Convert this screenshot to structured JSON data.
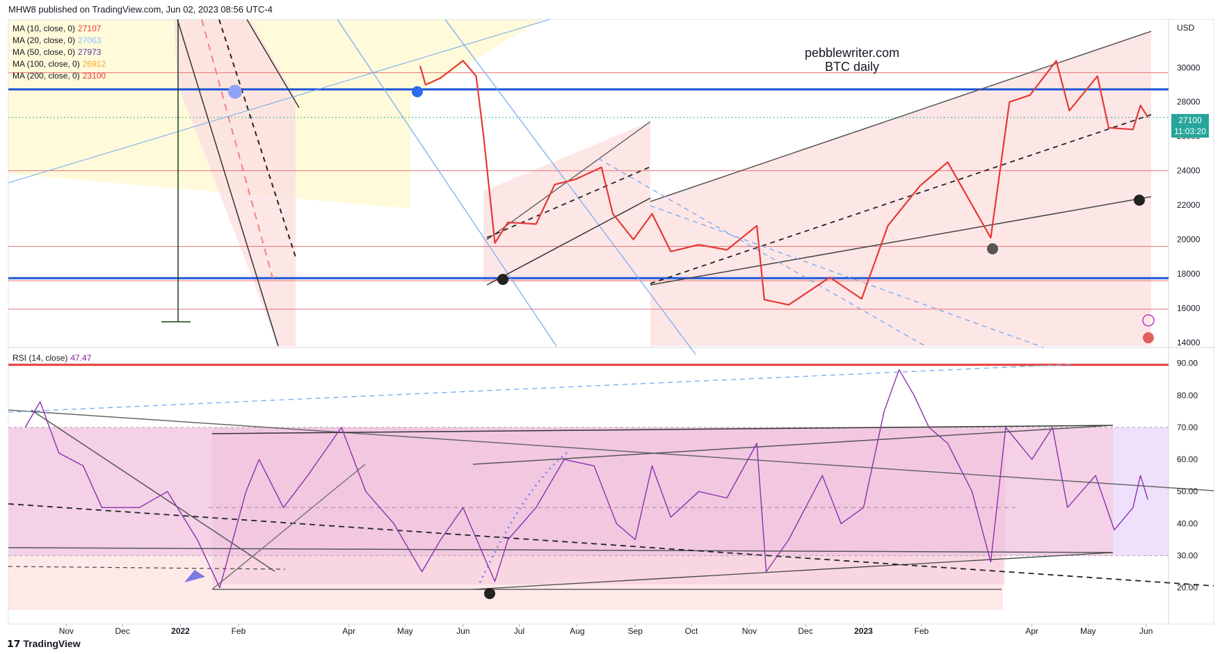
{
  "header": {
    "published": "MHW8 published on TradingView.com, Jun 02, 2023 08:56 UTC-4"
  },
  "watermark": {
    "line1": "pebblewriter.com",
    "line2": "BTC daily"
  },
  "footer": {
    "brand": "TradingView"
  },
  "price_tag": {
    "price": "27100",
    "countdown": "11:03:20",
    "color": "#26a69a"
  },
  "indicators": [
    {
      "label": "MA (10, close, 0)",
      "value": "27107",
      "color": "#e53935"
    },
    {
      "label": "MA (20, close, 0)",
      "value": "27063",
      "color": "#90bff9"
    },
    {
      "label": "MA (50, close, 0)",
      "value": "27973",
      "color": "#5b3c9e"
    },
    {
      "label": "MA (100, close, 0)",
      "value": "26912",
      "color": "#f9a825"
    },
    {
      "label": "MA (200, close, 0)",
      "value": "23100",
      "color": "#e53935"
    }
  ],
  "rsi_legend": {
    "label": "RSI (14, close)",
    "value": "47.47",
    "color": "#7b1fa2"
  },
  "chart_data": [
    {
      "type": "line",
      "title": "",
      "y_unit": "USD",
      "yticks": [
        "30000",
        "28000",
        "26000",
        "24000",
        "22000",
        "20000",
        "18000",
        "16000",
        "14000"
      ],
      "ylim": [
        13800,
        32800
      ],
      "x_ticks": [
        "Nov",
        "Dec",
        "2022",
        "Feb",
        "Apr",
        "May",
        "Jun",
        "Jul",
        "Aug",
        "Sep",
        "Oct",
        "Nov",
        "Dec",
        "2023",
        "Feb",
        "Apr",
        "May",
        "Jun"
      ],
      "horizontal_levels": [
        {
          "value": 29700,
          "color": "#e57373"
        },
        {
          "value": 28730,
          "color": "#1e56d8"
        },
        {
          "value": 27100,
          "color": "#26a69a"
        },
        {
          "value": 24000,
          "color": "#e57373"
        },
        {
          "value": 19600,
          "color": "#e57373"
        },
        {
          "value": 17750,
          "color": "#1e56d8"
        },
        {
          "value": 17600,
          "color": "#e57373"
        },
        {
          "value": 15950,
          "color": "#e57373"
        }
      ],
      "series": [
        {
          "points": [
            [
              "May 09, 2022",
              30100
            ],
            [
              "May 12, 2022",
              29000
            ],
            [
              "May 20, 2022",
              29400
            ],
            [
              "Jun 01, 2022",
              30400
            ],
            [
              "Jun 08, 2022",
              29500
            ],
            [
              "Jun 12, 2022",
              26000
            ],
            [
              "Jun 18, 2022",
              19800
            ],
            [
              "Jun 25, 2022",
              21000
            ],
            [
              "Jul 10, 2022",
              20900
            ],
            [
              "Jul 20, 2022",
              23200
            ],
            [
              "Jul 31, 2022",
              23500
            ],
            [
              "Aug 14, 2022",
              24200
            ],
            [
              "Aug 20, 2022",
              21500
            ],
            [
              "Aug 31, 2022",
              20000
            ],
            [
              "Sep 10, 2022",
              21500
            ],
            [
              "Sep 20, 2022",
              19300
            ],
            [
              "Oct 05, 2022",
              19700
            ],
            [
              "Oct 20, 2022",
              19400
            ],
            [
              "Nov 05, 2022",
              20800
            ],
            [
              "Nov 09, 2022",
              16500
            ],
            [
              "Nov 22, 2022",
              16200
            ],
            [
              "Dec 14, 2022",
              17800
            ],
            [
              "Dec 31, 2022",
              16550
            ],
            [
              "Jan 14, 2023",
              20800
            ],
            [
              "Jan 31, 2023",
              23100
            ],
            [
              "Feb 15, 2023",
              24500
            ],
            [
              "Mar 10, 2023",
              20100
            ],
            [
              "Mar 20, 2023",
              28000
            ],
            [
              "Mar 31, 2023",
              28400
            ],
            [
              "Apr 14, 2023",
              30400
            ],
            [
              "Apr 21, 2023",
              27500
            ],
            [
              "May 06, 2023",
              29500
            ],
            [
              "May 12, 2023",
              26500
            ],
            [
              "May 25, 2023",
              26400
            ],
            [
              "May 29, 2023",
              27800
            ],
            [
              "Jun 02, 2023",
              27100
            ]
          ]
        }
      ]
    },
    {
      "type": "line",
      "title": "",
      "yticks": [
        "90.00",
        "80.00",
        "70.00",
        "60.00",
        "50.00",
        "40.00",
        "30.00",
        "20.00"
      ],
      "ylim": [
        13,
        91
      ],
      "horizontal_levels": [
        {
          "value": 89.5,
          "color": "#e53935"
        },
        {
          "value": 70,
          "color": "#b0a0b0"
        },
        {
          "value": 30,
          "color": "#b0a0b0"
        }
      ],
      "series": [
        {
          "points": [
            [
              "Oct 10, 2021",
              70
            ],
            [
              "Oct 18, 2021",
              78
            ],
            [
              "Oct 28, 2021",
              62
            ],
            [
              "Nov 10, 2021",
              58
            ],
            [
              "Nov 20, 2021",
              45
            ],
            [
              "Dec 10, 2021",
              45
            ],
            [
              "Dec 25, 2021",
              50
            ],
            [
              "Jan 10, 2022",
              35
            ],
            [
              "Jan 22, 2022",
              20
            ],
            [
              "Feb 05, 2022",
              50
            ],
            [
              "Feb 12, 2022",
              60
            ],
            [
              "Feb 25, 2022",
              45
            ],
            [
              "Mar 10, 2022",
              55
            ],
            [
              "Mar 28, 2022",
              70
            ],
            [
              "Apr 10, 2022",
              50
            ],
            [
              "Apr 25, 2022",
              40
            ],
            [
              "May 10, 2022",
              25
            ],
            [
              "May 20, 2022",
              35
            ],
            [
              "Jun 01, 2022",
              45
            ],
            [
              "Jun 12, 2022",
              30
            ],
            [
              "Jun 18, 2022",
              22
            ],
            [
              "Jun 25, 2022",
              35
            ],
            [
              "Jul 10, 2022",
              45
            ],
            [
              "Jul 25, 2022",
              60
            ],
            [
              "Aug 10, 2022",
              58
            ],
            [
              "Aug 22, 2022",
              40
            ],
            [
              "Sep 01, 2022",
              35
            ],
            [
              "Sep 10, 2022",
              58
            ],
            [
              "Sep 20, 2022",
              42
            ],
            [
              "Oct 05, 2022",
              50
            ],
            [
              "Oct 20, 2022",
              48
            ],
            [
              "Nov 05, 2022",
              65
            ],
            [
              "Nov 10, 2022",
              25
            ],
            [
              "Nov 22, 2022",
              35
            ],
            [
              "Dec 10, 2022",
              55
            ],
            [
              "Dec 20, 2022",
              40
            ],
            [
              "Jan 01, 2023",
              45
            ],
            [
              "Jan 12, 2023",
              75
            ],
            [
              "Jan 20, 2023",
              88
            ],
            [
              "Jan 28, 2023",
              80
            ],
            [
              "Feb 05, 2023",
              70
            ],
            [
              "Feb 15, 2023",
              65
            ],
            [
              "Feb 28, 2023",
              50
            ],
            [
              "Mar 10, 2023",
              28
            ],
            [
              "Mar 18, 2023",
              70
            ],
            [
              "Apr 01, 2023",
              60
            ],
            [
              "Apr 12, 2023",
              70
            ],
            [
              "Apr 20, 2023",
              45
            ],
            [
              "May 05, 2023",
              55
            ],
            [
              "May 15, 2023",
              38
            ],
            [
              "May 25, 2023",
              45
            ],
            [
              "May 29, 2023",
              55
            ],
            [
              "Jun 02, 2023",
              47.47
            ]
          ]
        }
      ]
    }
  ]
}
